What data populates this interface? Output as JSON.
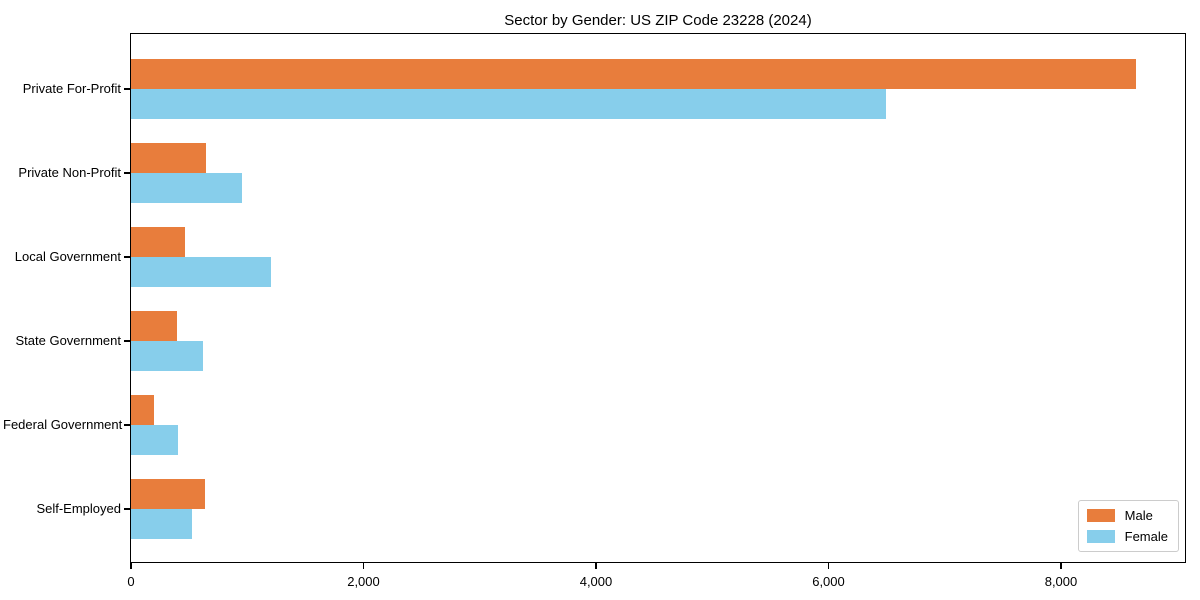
{
  "title": "Sector by Gender: US ZIP Code 23228 (2024)",
  "chart_data": {
    "type": "bar",
    "orientation": "horizontal",
    "title": "Sector by Gender: US ZIP Code 23228 (2024)",
    "categories": [
      "Private For-Profit",
      "Private Non-Profit",
      "Local Government",
      "State Government",
      "Federal Government",
      "Self-Employed"
    ],
    "series": [
      {
        "name": "Male",
        "color": "#e87d3c",
        "values": [
          8645,
          645,
          465,
          395,
          200,
          640
        ]
      },
      {
        "name": "Female",
        "color": "#87ceeb",
        "values": [
          6490,
          955,
          1205,
          620,
          405,
          525
        ]
      }
    ],
    "xlabel": "",
    "ylabel": "",
    "xlim": [
      0,
      9085
    ],
    "x_ticks": [
      0,
      2000,
      4000,
      6000,
      8000
    ],
    "x_tick_labels": [
      "0",
      "2,000",
      "4,000",
      "6,000",
      "8,000"
    ],
    "grid": false,
    "legend": {
      "entries": [
        "Male",
        "Female"
      ],
      "position": "lower right"
    }
  }
}
